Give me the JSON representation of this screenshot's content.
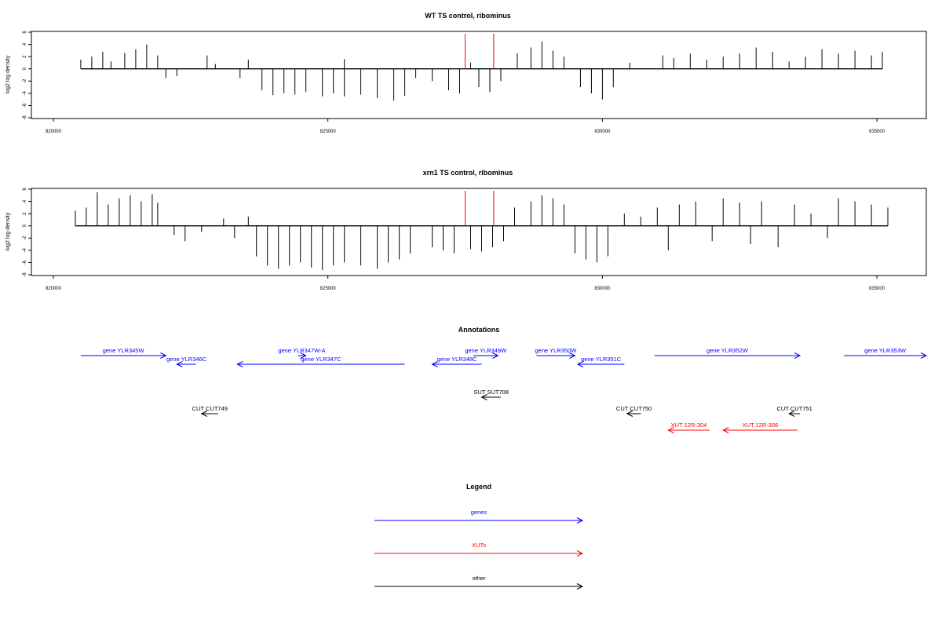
{
  "chart_data": [
    {
      "type": "bar",
      "title": "WT TS control, ribominus",
      "ylabel": "log2 log density",
      "xlim": [
        819600,
        835900
      ],
      "ylim": [
        -8,
        6
      ],
      "xticks": [
        "820000",
        "825000",
        "830000",
        "835000"
      ],
      "yticks": [
        "6",
        "4",
        "2",
        "0",
        "-2",
        "-4",
        "-6",
        "-8"
      ],
      "marker_lines_x": [
        827500,
        828020
      ],
      "marker_color": "#ff0000",
      "series": [
        {
          "values": [
            [
              820500,
              1.5
            ],
            [
              820700,
              2.0
            ],
            [
              820900,
              2.8
            ],
            [
              821050,
              1.2
            ],
            [
              821300,
              2.6
            ],
            [
              821500,
              3.2
            ],
            [
              821700,
              4.0
            ],
            [
              821900,
              2.2
            ],
            [
              822050,
              -1.5
            ],
            [
              822250,
              -1.2
            ],
            [
              822800,
              2.2
            ],
            [
              822950,
              0.8
            ],
            [
              823400,
              -1.5
            ],
            [
              823550,
              1.5
            ],
            [
              823800,
              -3.5
            ],
            [
              824000,
              -4.3
            ],
            [
              824200,
              -4.0
            ],
            [
              824400,
              -4.2
            ],
            [
              824600,
              -3.8
            ],
            [
              824900,
              -4.5
            ],
            [
              825100,
              -4.0
            ],
            [
              825300,
              1.6
            ],
            [
              825300,
              -4.5
            ],
            [
              825600,
              -4.2
            ],
            [
              825900,
              -4.8
            ],
            [
              826200,
              -5.2
            ],
            [
              826400,
              -4.4
            ],
            [
              826600,
              -1.5
            ],
            [
              826900,
              -2.0
            ],
            [
              827200,
              -3.5
            ],
            [
              827400,
              -4.0
            ],
            [
              827600,
              1.0
            ],
            [
              827750,
              -3.0
            ],
            [
              827950,
              -3.8
            ],
            [
              828150,
              -2.0
            ],
            [
              828450,
              2.5
            ],
            [
              828700,
              3.5
            ],
            [
              828900,
              4.5
            ],
            [
              829100,
              3.0
            ],
            [
              829300,
              2.0
            ],
            [
              829600,
              -3.0
            ],
            [
              829800,
              -4.0
            ],
            [
              830000,
              -5.0
            ],
            [
              830200,
              -3.0
            ],
            [
              830500,
              1.0
            ],
            [
              831100,
              2.2
            ],
            [
              831300,
              1.8
            ],
            [
              831600,
              2.5
            ],
            [
              831900,
              1.5
            ],
            [
              832200,
              2.0
            ],
            [
              832500,
              2.5
            ],
            [
              832800,
              3.5
            ],
            [
              833100,
              2.8
            ],
            [
              833400,
              1.2
            ],
            [
              833700,
              2.0
            ],
            [
              834000,
              3.2
            ],
            [
              834300,
              2.5
            ],
            [
              834600,
              3.0
            ],
            [
              834900,
              2.2
            ],
            [
              835100,
              2.8
            ]
          ]
        }
      ]
    },
    {
      "type": "bar",
      "title": "xrn1 TS control, ribominus",
      "ylabel": "log2 log density",
      "xlim": [
        819600,
        835900
      ],
      "ylim": [
        -8,
        6
      ],
      "xticks": [
        "820000",
        "825000",
        "830000",
        "835000"
      ],
      "yticks": [
        "6",
        "4",
        "2",
        "0",
        "-2",
        "-4",
        "-6",
        "-8"
      ],
      "marker_lines_x": [
        827500,
        828020
      ],
      "marker_color": "#ff0000",
      "series": [
        {
          "values": [
            [
              820400,
              2.5
            ],
            [
              820600,
              3.0
            ],
            [
              820800,
              5.5
            ],
            [
              821000,
              3.5
            ],
            [
              821200,
              4.5
            ],
            [
              821400,
              5.0
            ],
            [
              821600,
              4.0
            ],
            [
              821800,
              5.2
            ],
            [
              821900,
              3.8
            ],
            [
              822200,
              -1.5
            ],
            [
              822400,
              -2.5
            ],
            [
              822700,
              -1.0
            ],
            [
              823100,
              1.2
            ],
            [
              823300,
              -2.0
            ],
            [
              823550,
              1.5
            ],
            [
              823700,
              -5.0
            ],
            [
              823900,
              -6.5
            ],
            [
              824100,
              -7.0
            ],
            [
              824300,
              -6.5
            ],
            [
              824500,
              -6.0
            ],
            [
              824700,
              -6.8
            ],
            [
              824900,
              -7.2
            ],
            [
              825100,
              -6.5
            ],
            [
              825300,
              -6.0
            ],
            [
              825600,
              -6.5
            ],
            [
              825900,
              -7.0
            ],
            [
              826100,
              -6.0
            ],
            [
              826300,
              -5.5
            ],
            [
              826500,
              -4.5
            ],
            [
              826900,
              -3.5
            ],
            [
              827100,
              -4.0
            ],
            [
              827300,
              -4.5
            ],
            [
              827600,
              -3.8
            ],
            [
              827800,
              -4.2
            ],
            [
              828000,
              -3.5
            ],
            [
              828200,
              -2.5
            ],
            [
              828400,
              3.0
            ],
            [
              828700,
              4.0
            ],
            [
              828900,
              5.0
            ],
            [
              829100,
              4.5
            ],
            [
              829300,
              3.5
            ],
            [
              829500,
              -4.5
            ],
            [
              829700,
              -5.5
            ],
            [
              829900,
              -6.0
            ],
            [
              830100,
              -5.0
            ],
            [
              830400,
              2.0
            ],
            [
              830700,
              1.5
            ],
            [
              831000,
              3.0
            ],
            [
              831200,
              -4.0
            ],
            [
              831400,
              3.5
            ],
            [
              831700,
              4.0
            ],
            [
              832000,
              -2.5
            ],
            [
              832200,
              4.5
            ],
            [
              832500,
              3.8
            ],
            [
              832700,
              -3.0
            ],
            [
              832900,
              4.0
            ],
            [
              833200,
              -3.5
            ],
            [
              833500,
              3.5
            ],
            [
              833800,
              2.0
            ],
            [
              834100,
              -2.0
            ],
            [
              834300,
              4.5
            ],
            [
              834600,
              4.0
            ],
            [
              834900,
              3.5
            ],
            [
              835200,
              3.0
            ]
          ]
        }
      ]
    }
  ],
  "annotations": {
    "title": "Annotations",
    "items": [
      {
        "label": "gene YLR345W",
        "color": "#0000ff",
        "start": 820500,
        "end": 822050,
        "dir": "right",
        "row": 0
      },
      {
        "label": "gene YLR346C",
        "color": "#0000ff",
        "start": 822250,
        "end": 822600,
        "dir": "left",
        "row": 1
      },
      {
        "label": "gene YLR347W-A",
        "color": "#0000ff",
        "start": 824450,
        "end": 824600,
        "dir": "right",
        "row": 0
      },
      {
        "label": "gene YLR347C",
        "color": "#0000ff",
        "start": 823350,
        "end": 826400,
        "dir": "left",
        "row": 1
      },
      {
        "label": "gene YLR349W",
        "color": "#0000ff",
        "start": 827650,
        "end": 828100,
        "dir": "right",
        "row": 0
      },
      {
        "label": "gene YLR348C",
        "color": "#0000ff",
        "start": 826900,
        "end": 827800,
        "dir": "left",
        "row": 1
      },
      {
        "label": "gene YLR350W",
        "color": "#0000ff",
        "start": 828800,
        "end": 829500,
        "dir": "right",
        "row": 0
      },
      {
        "label": "gene YLR351C",
        "color": "#0000ff",
        "start": 829550,
        "end": 830400,
        "dir": "left",
        "row": 1
      },
      {
        "label": "gene YLR352W",
        "color": "#0000ff",
        "start": 830950,
        "end": 833600,
        "dir": "right",
        "row": 0
      },
      {
        "label": "gene YLR353W",
        "color": "#0000ff",
        "start": 834400,
        "end": 835900,
        "dir": "right",
        "row": 0
      },
      {
        "label": "SUT SUT708",
        "color": "#000000",
        "start": 827800,
        "end": 828150,
        "dir": "left",
        "row": 2
      },
      {
        "label": "CUT CUT749",
        "color": "#000000",
        "start": 822700,
        "end": 823000,
        "dir": "left",
        "row": 3
      },
      {
        "label": "CUT CUT750",
        "color": "#000000",
        "start": 830450,
        "end": 830700,
        "dir": "left",
        "row": 3
      },
      {
        "label": "CUT CUT751",
        "color": "#000000",
        "start": 833400,
        "end": 833600,
        "dir": "left",
        "row": 3
      },
      {
        "label": "XUT 12R-304",
        "color": "#ff0000",
        "start": 831200,
        "end": 831950,
        "dir": "left",
        "row": 4
      },
      {
        "label": "XUT 12R-306",
        "color": "#ff0000",
        "start": 832200,
        "end": 833550,
        "dir": "left",
        "row": 4
      }
    ]
  },
  "legend": {
    "title": "Legend",
    "items": [
      {
        "label": "genes",
        "color": "#0000ff"
      },
      {
        "label": "XUTs",
        "color": "#ff0000"
      },
      {
        "label": "other",
        "color": "#000000"
      }
    ]
  }
}
